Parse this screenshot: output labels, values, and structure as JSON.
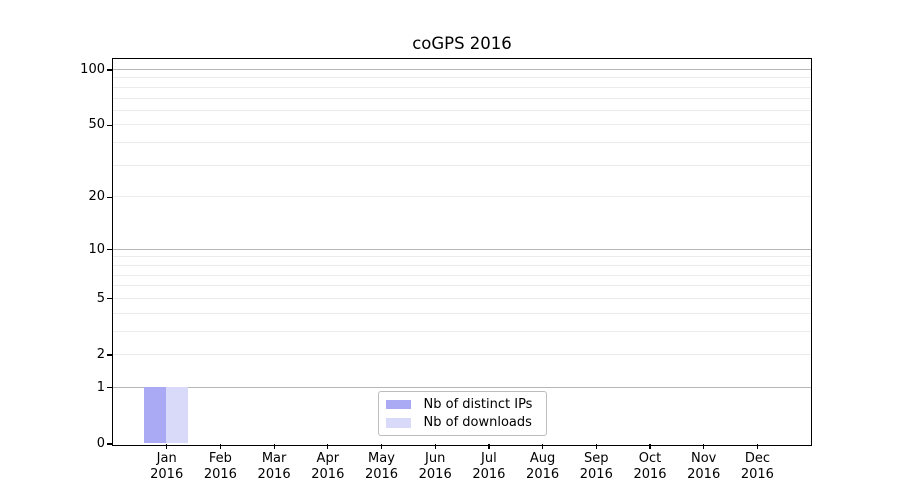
{
  "figure": {
    "background": "#ffffff"
  },
  "chart_data": {
    "type": "bar",
    "title": "coGPS 2016",
    "categories": [
      {
        "month": "Jan",
        "year": "2016"
      },
      {
        "month": "Feb",
        "year": "2016"
      },
      {
        "month": "Mar",
        "year": "2016"
      },
      {
        "month": "Apr",
        "year": "2016"
      },
      {
        "month": "May",
        "year": "2016"
      },
      {
        "month": "Jun",
        "year": "2016"
      },
      {
        "month": "Jul",
        "year": "2016"
      },
      {
        "month": "Aug",
        "year": "2016"
      },
      {
        "month": "Sep",
        "year": "2016"
      },
      {
        "month": "Oct",
        "year": "2016"
      },
      {
        "month": "Nov",
        "year": "2016"
      },
      {
        "month": "Dec",
        "year": "2016"
      }
    ],
    "series": [
      {
        "name": "Nb of distinct IPs",
        "color": "#a9a9f4",
        "values": [
          1,
          0,
          0,
          0,
          0,
          0,
          0,
          0,
          0,
          0,
          0,
          0
        ]
      },
      {
        "name": "Nb of downloads",
        "color": "#d9d9f9",
        "values": [
          1,
          0,
          0,
          0,
          0,
          0,
          0,
          0,
          0,
          0,
          0,
          0
        ]
      }
    ],
    "y_axis": {
      "scale": "log1p",
      "tick_labels": [
        "0",
        "1",
        "2",
        "5",
        "10",
        "20",
        "50",
        "100"
      ],
      "tick_values": [
        0,
        1,
        2,
        5,
        10,
        20,
        50,
        100
      ],
      "major_gridlines": [
        1,
        10,
        100
      ],
      "minor_gridlines": [
        2,
        3,
        4,
        5,
        6,
        7,
        8,
        9,
        20,
        30,
        40,
        50,
        60,
        70,
        80,
        90
      ],
      "range": [
        0,
        115
      ]
    },
    "grid": true,
    "legend": {
      "position": "lower center"
    }
  }
}
